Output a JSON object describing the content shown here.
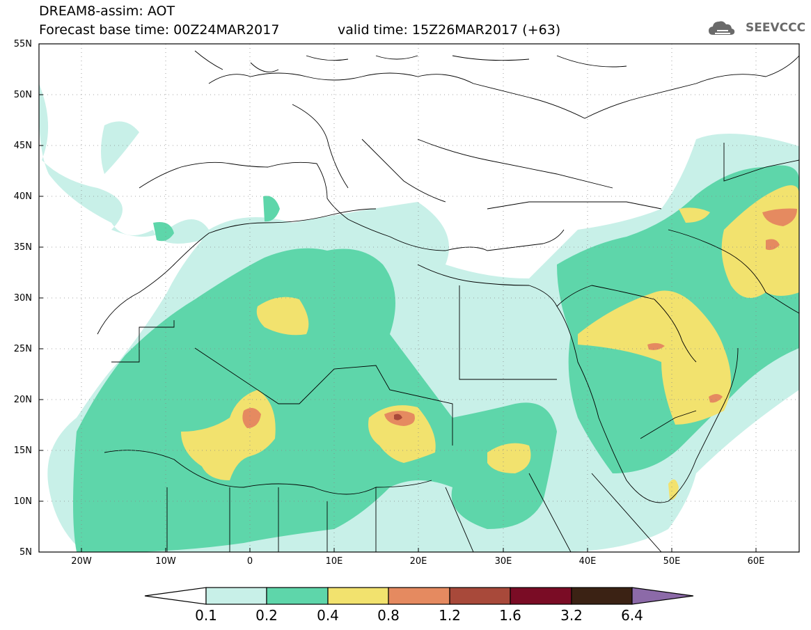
{
  "header": {
    "title_line1": "DREAM8-assim: AOT",
    "title_line2": "Forecast base time: 00Z24MAR2017",
    "valid_time": "valid time: 15Z26MAR2017 (+63)",
    "logo_text": "SEEVCCC",
    "logo_icon": "cloud-icon"
  },
  "map": {
    "lat_labels": [
      "55N",
      "50N",
      "45N",
      "40N",
      "35N",
      "30N",
      "25N",
      "20N",
      "15N",
      "10N",
      "5N"
    ],
    "lon_labels": [
      "20W",
      "10W",
      "0",
      "10E",
      "20E",
      "30E",
      "40E",
      "50E",
      "60E"
    ],
    "extent": {
      "lon_min": -25,
      "lon_max": 65,
      "lat_min": 5,
      "lat_max": 55
    },
    "grid": "dotted"
  },
  "colorbar": {
    "labels": [
      "0.1",
      "0.2",
      "0.4",
      "0.8",
      "1.2",
      "1.6",
      "3.2",
      "6.4"
    ],
    "colors": [
      "#ffffff",
      "#c8f0e8",
      "#5ed6aa",
      "#f2e26e",
      "#e58a60",
      "#a8493a",
      "#7a0c25",
      "#3b2214",
      "#8c6aa8"
    ]
  }
}
